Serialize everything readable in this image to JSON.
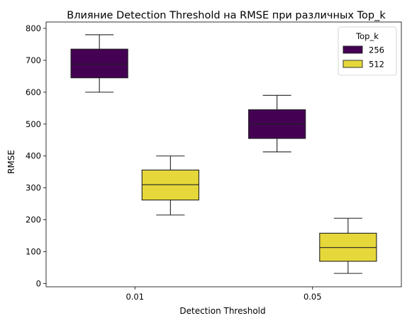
{
  "chart_data": {
    "type": "box",
    "title": "Влияние Detection Threshold на RMSE при различных Top_k",
    "xlabel": "Detection Threshold",
    "ylabel": "RMSE",
    "categories": [
      "0.01",
      "0.05"
    ],
    "ylim": [
      -10,
      820
    ],
    "yticks": [
      0,
      100,
      200,
      300,
      400,
      500,
      600,
      700,
      800
    ],
    "legend": {
      "title": "Top_k",
      "placement": "top-right"
    },
    "series": [
      {
        "name": "256",
        "color": "#440154",
        "boxes": [
          {
            "min": 600,
            "q1": 645,
            "median": 688,
            "q3": 735,
            "max": 780
          },
          {
            "min": 413,
            "q1": 455,
            "median": 500,
            "q3": 545,
            "max": 590
          }
        ]
      },
      {
        "name": "512",
        "color": "#e6d83a",
        "boxes": [
          {
            "min": 215,
            "q1": 262,
            "median": 310,
            "q3": 356,
            "max": 400
          },
          {
            "min": 32,
            "q1": 70,
            "median": 113,
            "q3": 158,
            "max": 205
          }
        ]
      }
    ]
  }
}
